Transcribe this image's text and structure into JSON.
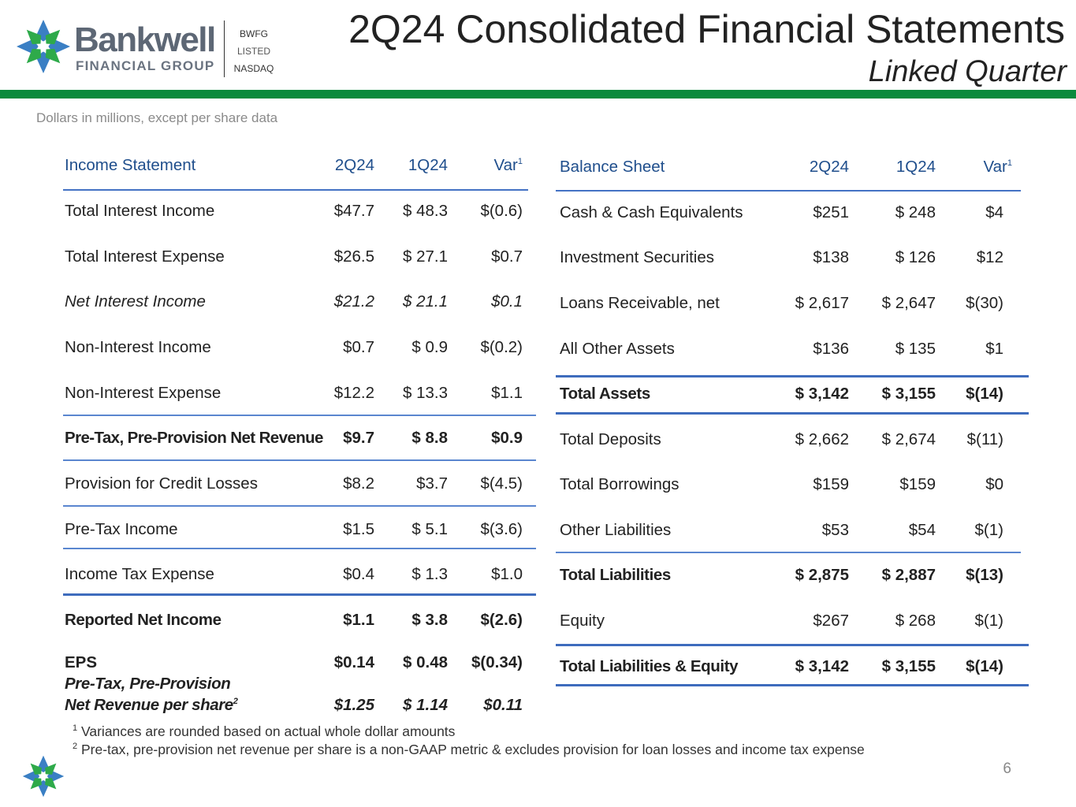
{
  "header": {
    "logo_text": "Bankwell",
    "logo_subtext": "FINANCIAL GROUP",
    "ticker": "BWFG",
    "listed": "LISTED",
    "exchange": "NASDAQ",
    "title": "2Q24 Consolidated Financial Statements",
    "subtitle": "Linked Quarter",
    "units_note": "Dollars in millions, except per share data"
  },
  "colors": {
    "brand_green": "#0a8a3c",
    "header_blue": "#1f4e8c",
    "rule_blue": "#4472c4",
    "logo_blue": "#3a7fc4",
    "logo_green": "#2eaa4a"
  },
  "income_statement": {
    "headers": {
      "label": "Income Statement",
      "c1": "2Q24",
      "c2": "1Q24",
      "c3": "Var",
      "c3_sup": "1"
    },
    "rows": [
      {
        "label": "Total Interest Income",
        "c1": "$47.7",
        "c2": "$ 48.3",
        "c3": "$(0.6)"
      },
      {
        "label": "Total Interest Expense",
        "c1": "$26.5",
        "c2": "$ 27.1",
        "c3": "$0.7"
      },
      {
        "label": "Net Interest Income",
        "c1": "$21.2",
        "c2": "$ 21.1",
        "c3": "$0.1"
      },
      {
        "label": "Non-Interest Income",
        "c1": "$0.7",
        "c2": "$ 0.9",
        "c3": "$(0.2)"
      },
      {
        "label": "Non-Interest Expense",
        "c1": "$12.2",
        "c2": "$ 13.3",
        "c3": "$1.1"
      },
      {
        "label": "Pre-Tax, Pre-Provision Net Revenue",
        "c1": "$9.7",
        "c2": "$ 8.8",
        "c3": "$0.9"
      },
      {
        "label": "Provision for Credit Losses",
        "c1": "$8.2",
        "c2": "$3.7",
        "c3": "$(4.5)"
      },
      {
        "label": "Pre-Tax Income",
        "c1": "$1.5",
        "c2": "$ 5.1",
        "c3": "$(3.6)"
      },
      {
        "label": "Income Tax Expense",
        "c1": "$0.4",
        "c2": "$ 1.3",
        "c3": "$1.0"
      },
      {
        "label": "Reported Net Income",
        "c1": "$1.1",
        "c2": "$ 3.8",
        "c3": "$(2.6)"
      },
      {
        "label": "EPS",
        "c1": "$0.14",
        "c2": "$ 0.48",
        "c3": "$(0.34)"
      }
    ],
    "pppnr_label_line1": "Pre-Tax, Pre-Provision",
    "pppnr_label_line2": "Net Revenue per share",
    "pppnr_label_sup": "2",
    "pppnr_c1": "$1.25",
    "pppnr_c2": "$ 1.14",
    "pppnr_c3": "$0.11"
  },
  "balance_sheet": {
    "headers": {
      "label": "Balance Sheet",
      "c1": "2Q24",
      "c2": "1Q24",
      "c3": "Var",
      "c3_sup": "1"
    },
    "rows": [
      {
        "label": "Cash & Cash Equivalents",
        "c1": "$251",
        "c2": "$ 248",
        "c3": "$4"
      },
      {
        "label": "Investment Securities",
        "c1": "$138",
        "c2": "$ 126",
        "c3": "$12"
      },
      {
        "label": "Loans Receivable, net",
        "c1": "$ 2,617",
        "c2": "$ 2,647",
        "c3": "$(30)"
      },
      {
        "label": "All Other Assets",
        "c1": "$136",
        "c2": "$ 135",
        "c3": "$1"
      },
      {
        "label": "Total Assets",
        "c1": "$ 3,142",
        "c2": "$ 3,155",
        "c3": "$(14)"
      },
      {
        "label": "Total Deposits",
        "c1": "$ 2,662",
        "c2": "$ 2,674",
        "c3": "$(11)"
      },
      {
        "label": "Total Borrowings",
        "c1": "$159",
        "c2": "$159",
        "c3": "$0"
      },
      {
        "label": "Other Liabilities",
        "c1": "$53",
        "c2": "$54",
        "c3": "$(1)"
      },
      {
        "label": "Total Liabilities",
        "c1": "$ 2,875",
        "c2": "$ 2,887",
        "c3": "$(13)"
      },
      {
        "label": "Equity",
        "c1": "$267",
        "c2": "$ 268",
        "c3": "$(1)"
      },
      {
        "label": "Total Liabilities & Equity",
        "c1": "$ 3,142",
        "c2": "$ 3,155",
        "c3": "$(14)"
      }
    ]
  },
  "footnotes": {
    "n1_sup": "1",
    "n1": "Variances are rounded based on actual whole dollar amounts",
    "n2_sup": "2",
    "n2": "Pre-tax, pre-provision net revenue per share is a non-GAAP metric & excludes provision for loan losses and income tax expense"
  },
  "page_number": "6"
}
